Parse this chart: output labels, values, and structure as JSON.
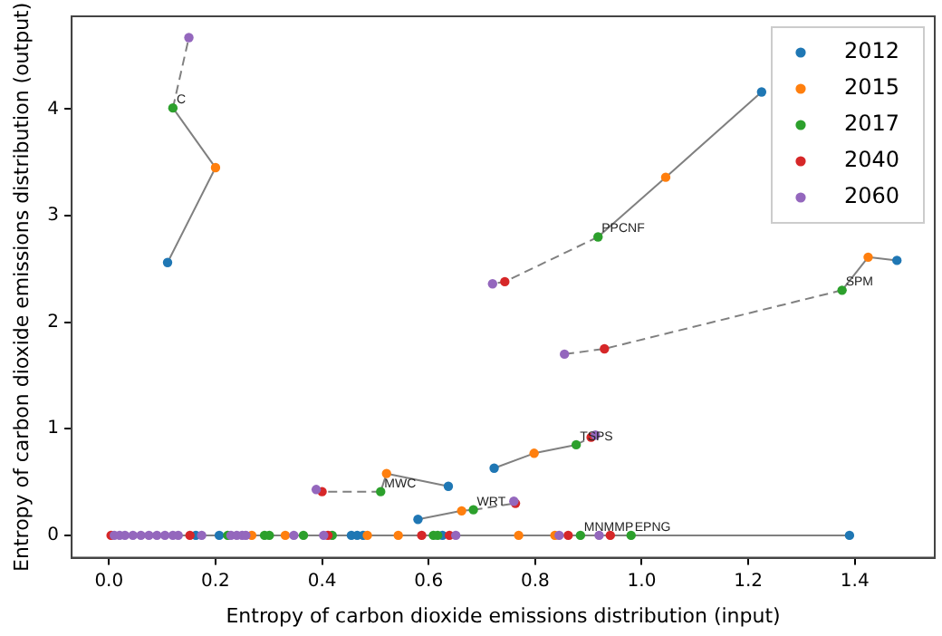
{
  "chart_data": {
    "type": "scatter",
    "xlabel": "Entropy of carbon dioxide emissions distribution (input)",
    "ylabel": "Entropy of carbon dioxide emissions distribution (output)",
    "xlim": [
      -0.07,
      1.55
    ],
    "ylim": [
      -0.21,
      4.87
    ],
    "xticks": [
      {
        "value": 0,
        "label": "0.0"
      },
      {
        "value": 0.2,
        "label": "0.2"
      },
      {
        "value": 0.4,
        "label": "0.4"
      },
      {
        "value": 0.6,
        "label": "0.6"
      },
      {
        "value": 0.8,
        "label": "0.8"
      },
      {
        "value": 1,
        "label": "1.0"
      },
      {
        "value": 1.2,
        "label": "1.2"
      },
      {
        "value": 1.4,
        "label": "1.4"
      }
    ],
    "yticks": [
      0,
      1,
      2,
      3,
      4
    ],
    "grid": false,
    "legend": "top right",
    "marker": "circle",
    "series": [
      {
        "type": "line",
        "color": "#808080",
        "line_style": "solid",
        "marker": "none",
        "x": [
          0.004,
          1.39
        ],
        "values": [
          0,
          0
        ]
      },
      {
        "type": "line",
        "color": "#808080",
        "line_style": "solid",
        "marker": "none",
        "x": [
          0.11,
          0.2,
          0.12
        ],
        "values": [
          2.56,
          3.45,
          4.01
        ]
      },
      {
        "type": "line",
        "color": "#808080",
        "line_style": "dashed",
        "marker": "none",
        "x": [
          0.12,
          0.15
        ],
        "values": [
          4.01,
          4.67
        ]
      },
      {
        "type": "line",
        "color": "#808080",
        "line_style": "solid",
        "marker": "none",
        "x": [
          1.225,
          1.045,
          0.918
        ],
        "values": [
          4.16,
          3.36,
          2.8
        ]
      },
      {
        "type": "line",
        "color": "#808080",
        "line_style": "dashed",
        "marker": "none",
        "x": [
          0.918,
          0.743,
          0.72
        ],
        "values": [
          2.8,
          2.38,
          2.36
        ]
      },
      {
        "type": "line",
        "color": "#808080",
        "line_style": "solid",
        "marker": "none",
        "x": [
          1.479,
          1.425,
          1.376
        ],
        "values": [
          2.58,
          2.61,
          2.3
        ]
      },
      {
        "type": "line",
        "color": "#808080",
        "line_style": "dashed",
        "marker": "none",
        "x": [
          1.376,
          0.93,
          0.855
        ],
        "values": [
          2.3,
          1.75,
          1.7
        ]
      },
      {
        "type": "line",
        "color": "#808080",
        "line_style": "solid",
        "marker": "none",
        "x": [
          0.723,
          0.798,
          0.877
        ],
        "values": [
          0.63,
          0.77,
          0.85
        ]
      },
      {
        "type": "line",
        "color": "#808080",
        "line_style": "dashed",
        "marker": "none",
        "x": [
          0.877,
          0.905,
          0.913
        ],
        "values": [
          0.85,
          0.92,
          0.94
        ]
      },
      {
        "type": "line",
        "color": "#808080",
        "line_style": "solid",
        "marker": "none",
        "x": [
          0.637,
          0.521,
          0.51
        ],
        "values": [
          0.46,
          0.58,
          0.41
        ]
      },
      {
        "type": "line",
        "color": "#808080",
        "line_style": "dashed",
        "marker": "none",
        "x": [
          0.51,
          0.4,
          0.389
        ],
        "values": [
          0.41,
          0.41,
          0.43
        ]
      },
      {
        "type": "line",
        "color": "#808080",
        "line_style": "solid",
        "marker": "none",
        "x": [
          0.58,
          0.662,
          0.684
        ],
        "values": [
          0.15,
          0.23,
          0.24
        ]
      },
      {
        "type": "line",
        "color": "#808080",
        "line_style": "dashed",
        "marker": "none",
        "x": [
          0.684,
          0.763,
          0.76
        ],
        "values": [
          0.24,
          0.3,
          0.32
        ]
      },
      {
        "name": "2012",
        "color": "#1f77b4",
        "x": [
          0.11,
          1.225,
          1.479,
          0.723,
          0.637,
          0.58,
          0.163,
          0.207,
          0.455,
          0.466,
          0.477,
          0.626,
          1.39
        ],
        "values": [
          2.56,
          4.16,
          2.58,
          0.63,
          0.46,
          0.15,
          0,
          0,
          0,
          0,
          0,
          0,
          0
        ]
      },
      {
        "name": "2015",
        "color": "#ff7f0e",
        "x": [
          0.2,
          1.045,
          1.425,
          0.798,
          0.521,
          0.662,
          0.268,
          0.331,
          0.485,
          0.543,
          0.769,
          0.837
        ],
        "values": [
          3.45,
          3.36,
          2.61,
          0.77,
          0.58,
          0.23,
          0,
          0,
          0,
          0,
          0,
          0
        ]
      },
      {
        "name": "2017",
        "color": "#2ca02c",
        "x": [
          0.12,
          0.918,
          1.376,
          0.877,
          0.51,
          0.684,
          0.223,
          0.292,
          0.301,
          0.365,
          0.419,
          0.609,
          0.617,
          0.885,
          0.98
        ],
        "values": [
          4.01,
          2.8,
          2.3,
          0.85,
          0.41,
          0.24,
          0,
          0,
          0,
          0,
          0,
          0,
          0,
          0,
          0
        ]
      },
      {
        "name": "2040",
        "color": "#d62728",
        "x": [
          0.743,
          0.93,
          0.905,
          0.4,
          0.763,
          0.004,
          0.152,
          0.411,
          0.587,
          0.639,
          0.862,
          0.941
        ],
        "values": [
          2.38,
          1.75,
          0.92,
          0.41,
          0.3,
          0,
          0,
          0,
          0,
          0,
          0,
          0
        ]
      },
      {
        "name": "2060",
        "color": "#9467bd",
        "x": [
          0.15,
          0.72,
          0.855,
          0.913,
          0.389,
          0.76,
          0.01,
          0.02,
          0.03,
          0.045,
          0.06,
          0.075,
          0.09,
          0.105,
          0.12,
          0.13,
          0.174,
          0.229,
          0.24,
          0.25,
          0.257,
          0.347,
          0.403,
          0.651,
          0.845,
          0.92
        ],
        "values": [
          4.67,
          2.36,
          1.7,
          0.94,
          0.43,
          0.32,
          0,
          0,
          0,
          0,
          0,
          0,
          0,
          0,
          0,
          0,
          0,
          0,
          0,
          0,
          0,
          0,
          0,
          0,
          0,
          0
        ]
      }
    ],
    "annotations": [
      {
        "text": "C",
        "x": 0.12,
        "y": 4.01
      },
      {
        "text": "PPCNF",
        "x": 0.918,
        "y": 2.8
      },
      {
        "text": "SPM",
        "x": 1.376,
        "y": 2.3
      },
      {
        "text": "TSPS",
        "x": 0.877,
        "y": 0.85
      },
      {
        "text": "MWC",
        "x": 0.51,
        "y": 0.41
      },
      {
        "text": "WRT",
        "x": 0.684,
        "y": 0.24
      },
      {
        "text": "MNMMP",
        "x": 0.885,
        "y": 0
      },
      {
        "text": "EPNG",
        "x": 0.98,
        "y": 0
      }
    ]
  }
}
